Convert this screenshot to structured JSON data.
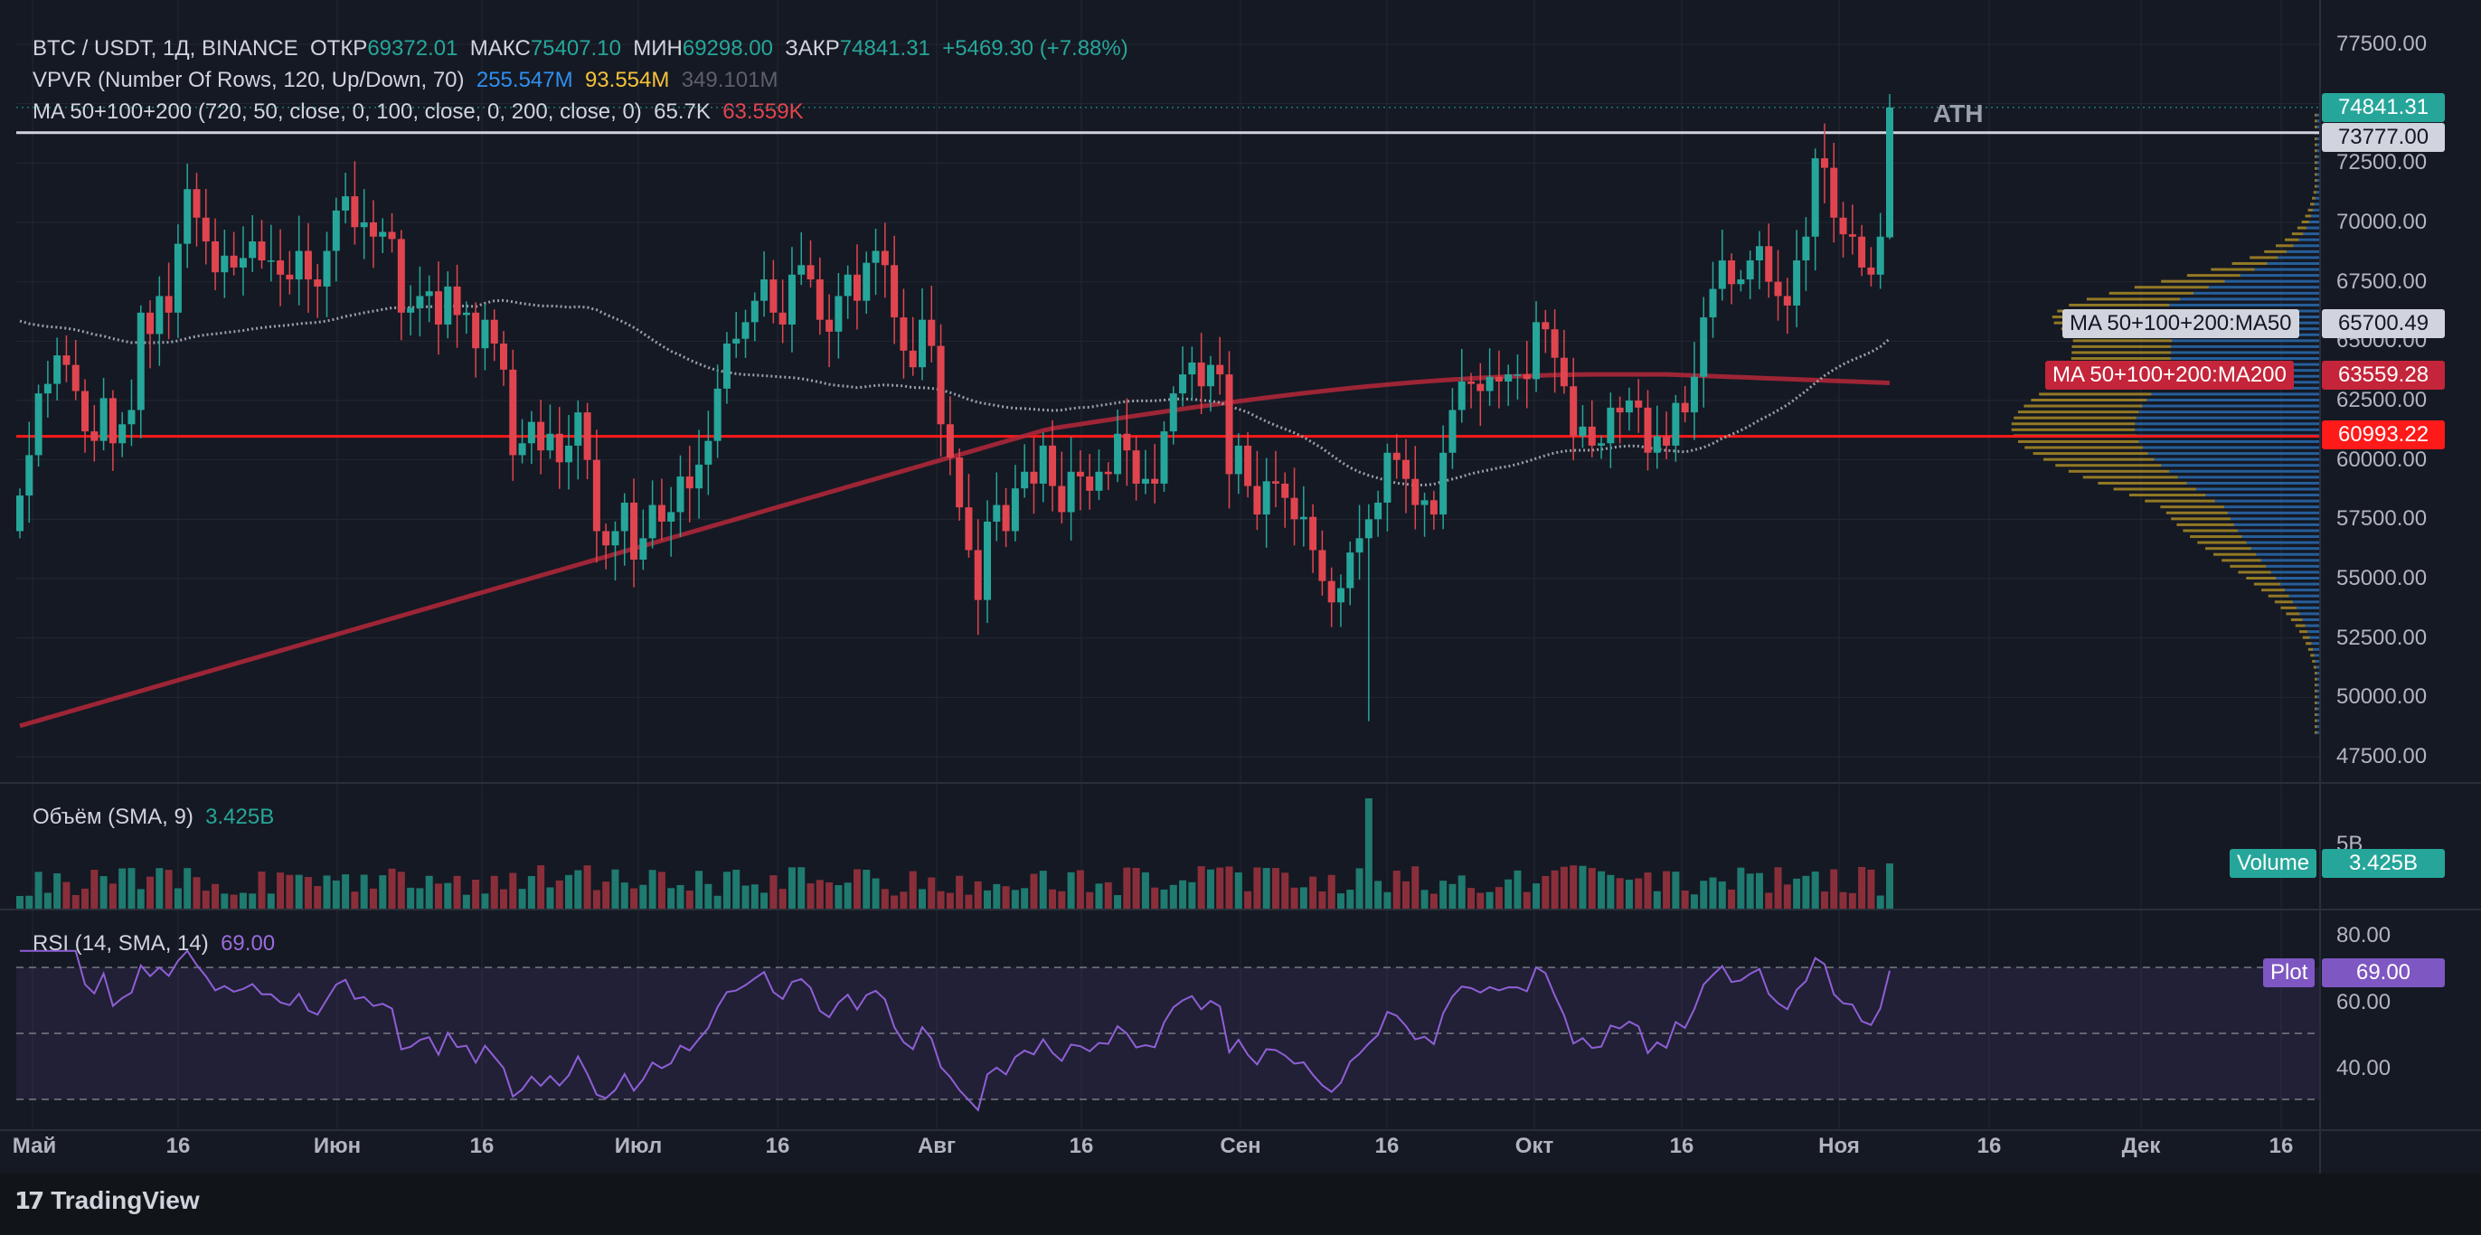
{
  "header": {
    "symbol": "BTC / USDT, 1Д, BINANCE",
    "open_label": "ОТКР",
    "open": "69372.01",
    "high_label": "МАКС",
    "high": "75407.10",
    "low_label": "МИН",
    "low": "69298.00",
    "close_label": "ЗАКР",
    "close": "74841.31",
    "change": "+5469.30 (+7.88%)"
  },
  "vpvr": {
    "label": "VPVR (Number Of Rows, 120, Up/Down, 70)",
    "up": "255.547M",
    "down": "93.554M",
    "total": "349.101M"
  },
  "ma": {
    "label": "MA 50+100+200 (720, 50, close, 0, 100, close, 0, 200, close, 0)",
    "v1": "65.7K",
    "v2": "63.559K",
    "ma50_label": "MA 50+100+200:MA50",
    "ma50_value": "65700.49",
    "ma200_label": "MA 50+100+200:MA200",
    "ma200_value": "63559.28"
  },
  "price_tags": {
    "last": "74841.31",
    "ath_line": "73777.00",
    "red_line": "60993.22"
  },
  "ath_label": "ATH",
  "volume": {
    "label": "Объём (SMA, 9)",
    "value": "3.425B",
    "tag_label": "Volume",
    "tag_value": "3.425B",
    "axis_label": "5B"
  },
  "rsi": {
    "label": "RSI (14, SMA, 14)",
    "value": "69.00",
    "tag_label": "Plot",
    "tag_value": "69.00",
    "levels": [
      "80.00",
      "60.00",
      "40.00"
    ]
  },
  "price_axis": [
    "77500.00",
    "75000.00",
    "72500.00",
    "70000.00",
    "67500.00",
    "65000.00",
    "62500.00",
    "60000.00",
    "57500.00",
    "55000.00",
    "52500.00",
    "50000.00",
    "47500.00"
  ],
  "time_axis": [
    "Май",
    "16",
    "Июн",
    "16",
    "Июл",
    "16",
    "Авг",
    "16",
    "Сен",
    "16",
    "Окт",
    "16",
    "Ноя",
    "16",
    "Дек",
    "16"
  ],
  "footer": {
    "brand": "TradingView"
  },
  "colors": {
    "up": "#26a69a",
    "down": "#e0454f",
    "ma200": "#b5283a",
    "ma50": "#9aa0ab",
    "rsi": "#8f5fd6",
    "red_line": "#ff1a1a"
  },
  "chart_data": {
    "type": "candlestick",
    "title": "BTC / USDT, 1Д, BINANCE",
    "ylim": [
      46500,
      78500
    ],
    "xlabel": "",
    "ylabel": "",
    "dates": [
      "2024-05-01",
      "2024-11-05"
    ],
    "close": [
      58500,
      60200,
      62800,
      63200,
      64400,
      64000,
      62900,
      61200,
      60800,
      62600,
      60700,
      61500,
      62100,
      66200,
      65300,
      66900,
      66200,
      69100,
      71400,
      70200,
      69200,
      67900,
      68600,
      68100,
      68500,
      69200,
      68400,
      68400,
      67800,
      67600,
      68800,
      67600,
      67300,
      68800,
      70500,
      71100,
      69800,
      70000,
      69400,
      69600,
      69300,
      66200,
      66400,
      66900,
      67100,
      65700,
      67300,
      66100,
      66200,
      64700,
      65900,
      64900,
      63800,
      60200,
      60700,
      61600,
      60400,
      61100,
      59900,
      60600,
      62000,
      60000,
      57000,
      56400,
      57000,
      58200,
      55800,
      56700,
      58100,
      57400,
      57800,
      59300,
      58800,
      59800,
      60800,
      63000,
      64900,
      65100,
      65800,
      66700,
      67600,
      66200,
      65700,
      67800,
      68200,
      67600,
      65900,
      65400,
      66900,
      67800,
      66700,
      68300,
      68800,
      68200,
      66000,
      64600,
      63900,
      65900,
      64800,
      61500,
      60100,
      58000,
      56200,
      54100,
      57400,
      58100,
      57000,
      58800,
      59500,
      59000,
      60600,
      58900,
      57800,
      59500,
      59300,
      58700,
      59500,
      59400,
      61100,
      60400,
      59000,
      59200,
      59000,
      61200,
      62800,
      63600,
      64100,
      63100,
      64000,
      63600,
      59400,
      60600,
      58900,
      57700,
      59100,
      59000,
      58400,
      57500,
      57600,
      56200,
      54900,
      54000,
      54600,
      56100,
      56700,
      57500,
      58200,
      60300,
      60000,
      59200,
      58100,
      58300,
      57700,
      60300,
      62100,
      63300,
      63200,
      62900,
      63500,
      63300,
      63600,
      63600,
      63400,
      65800,
      65500,
      64300,
      63100,
      61000,
      61400,
      60600,
      60700,
      62200,
      62000,
      62500,
      62200,
      60300,
      61000,
      60600,
      62400,
      62000,
      63500,
      66000,
      67200,
      68400,
      67400,
      67600,
      68400,
      69000,
      67500,
      66900,
      66500,
      68400,
      69400,
      72700,
      72300,
      70200,
      69500,
      69400,
      68100,
      67800,
      69400,
      74841
    ]
  }
}
